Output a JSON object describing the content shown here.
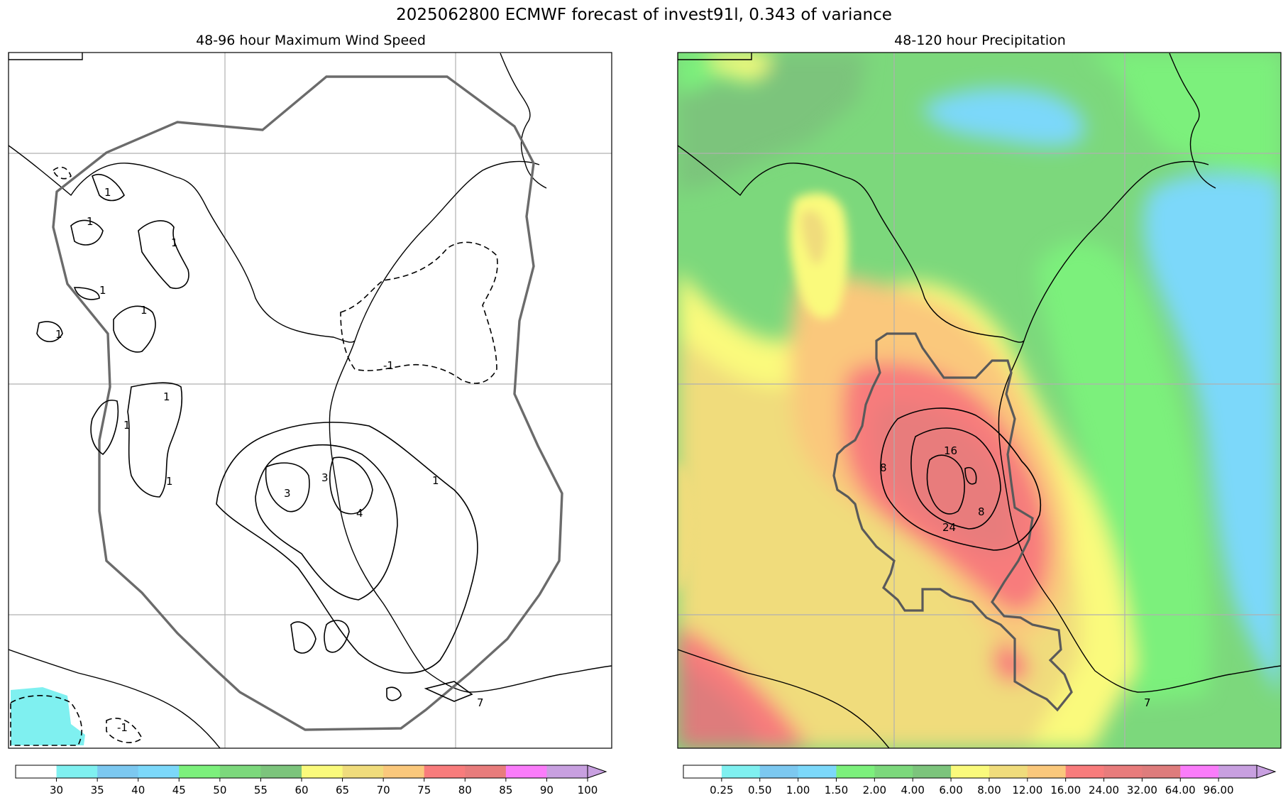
{
  "figure": {
    "title": "2025062800 ECMWF forecast of invest91l, 0.343 of variance"
  },
  "left_panel": {
    "title": "48-96 hour Maximum Wind Speed",
    "contour_labels": [
      "1",
      "1",
      "1",
      "1",
      "1",
      "1",
      "1",
      "1",
      "1",
      "3",
      "3",
      "4",
      "1",
      "-1",
      "-1",
      "7"
    ],
    "colorbar": {
      "ticks": [
        "30",
        "35",
        "40",
        "45",
        "50",
        "55",
        "60",
        "65",
        "70",
        "75",
        "80",
        "85",
        "90",
        "100"
      ],
      "colors": [
        "#ffffff",
        "#7ff0f0",
        "#7cc8f0",
        "#7cd8fa",
        "#7cf07c",
        "#7cd87c",
        "#7cc47c",
        "#fafa7c",
        "#f0dc7c",
        "#fac87c",
        "#f87c7c",
        "#e87c7c",
        "#fa7cfa",
        "#c8a0e0"
      ]
    }
  },
  "right_panel": {
    "title": "48-120 hour Precipitation",
    "contour_labels": [
      "8",
      "16",
      "24",
      "8",
      "7"
    ],
    "colorbar": {
      "ticks": [
        "0.25",
        "0.50",
        "1.00",
        "1.50",
        "2.00",
        "4.00",
        "6.00",
        "8.00",
        "12.00",
        "16.00",
        "24.00",
        "32.00",
        "64.00",
        "96.00"
      ],
      "colors": [
        "#ffffff",
        "#7ff0f0",
        "#7cc8f0",
        "#7cd8fa",
        "#7cf07c",
        "#7cd87c",
        "#7cc47c",
        "#fafa7c",
        "#f0dc7c",
        "#fac87c",
        "#f87c7c",
        "#e87c7c",
        "#de7c7c",
        "#fa7cfa",
        "#c8a0e0"
      ]
    }
  }
}
